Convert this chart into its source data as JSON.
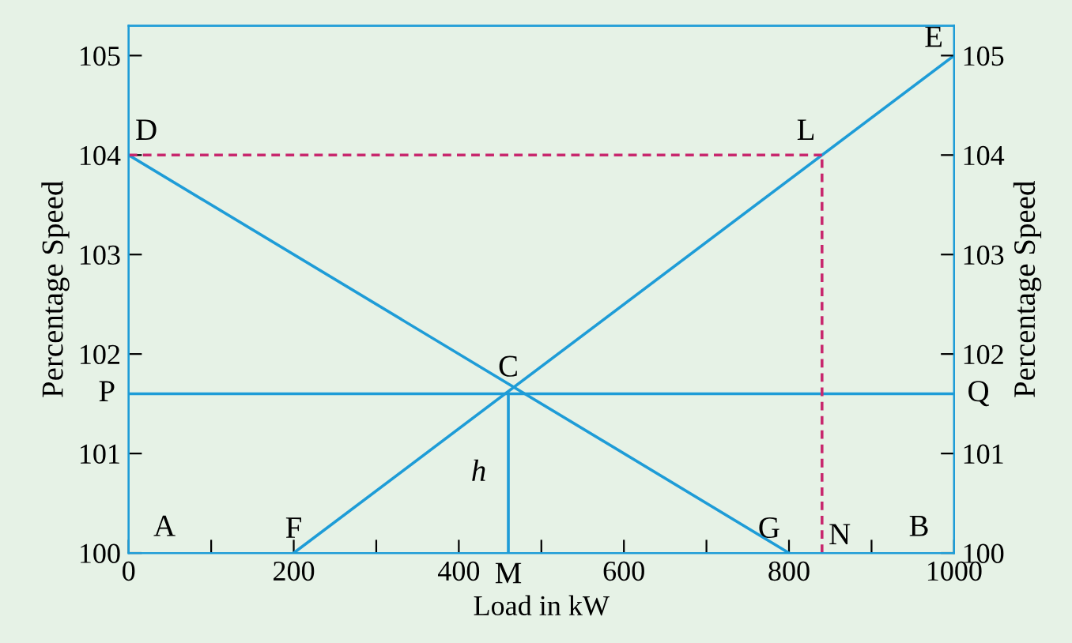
{
  "chart_data": {
    "type": "line",
    "xlabel": "Load in kW",
    "ylabel": "Percentage Speed",
    "y2label": "Percentage Speed",
    "xlim": [
      0,
      1000
    ],
    "ylim": [
      100,
      105.3
    ],
    "y2lim": [
      100,
      105.3
    ],
    "xticks": [
      0,
      {
        "value": 100,
        "label": null
      },
      200,
      {
        "value": 300,
        "label": null
      },
      400,
      {
        "value": 500,
        "label": null
      },
      600,
      {
        "value": 700,
        "label": null
      },
      800,
      {
        "value": 900,
        "label": null
      },
      1000
    ],
    "yticks": [
      100,
      101,
      102,
      103,
      104,
      105
    ],
    "y2ticks": [
      100,
      101,
      102,
      103,
      104,
      105
    ],
    "grid": false,
    "legend": false,
    "marker": "none",
    "series": [
      {
        "x": [
          0,
          800
        ],
        "values": [
          104,
          100
        ],
        "color": "#1e9cd7",
        "line_style": "solid"
      },
      {
        "x": [
          200,
          1000
        ],
        "values": [
          100,
          105
        ],
        "color": "#1e9cd7",
        "line_style": "solid"
      },
      {
        "x": [
          0,
          1000
        ],
        "values": [
          101.6,
          101.6
        ],
        "color": "#1e9cd7",
        "line_style": "solid"
      },
      {
        "x": [
          460,
          460
        ],
        "values": [
          100,
          101.6
        ],
        "color": "#1e9cd7",
        "line_style": "solid"
      },
      {
        "x": [
          0,
          840
        ],
        "values": [
          104,
          104
        ],
        "color": "#c8286e",
        "line_style": "dashed"
      },
      {
        "x": [
          840,
          840
        ],
        "values": [
          100,
          104
        ],
        "color": "#c8286e",
        "line_style": "dashed"
      }
    ],
    "annotations": [
      "A",
      {
        "text": "F",
        "x": 200,
        "y": 100
      },
      {
        "text": "G",
        "x": 800,
        "y": 100
      },
      {
        "text": "N",
        "x": 840,
        "y": 100
      },
      "B",
      {
        "text": "D",
        "x": 0,
        "y": 104
      },
      {
        "text": "E",
        "x": 1000,
        "y": 105
      },
      {
        "text": "L",
        "x": 840,
        "y": 104
      },
      {
        "text": "C",
        "x": 460,
        "y": 101.6
      },
      {
        "text": "P",
        "x": 0,
        "y": 101.6
      },
      {
        "text": "Q",
        "x": 1000,
        "y": 101.6
      },
      {
        "text": "M",
        "x": 460,
        "y": 100
      },
      {
        "text": "h",
        "x": 460,
        "y": 100.8
      }
    ]
  }
}
